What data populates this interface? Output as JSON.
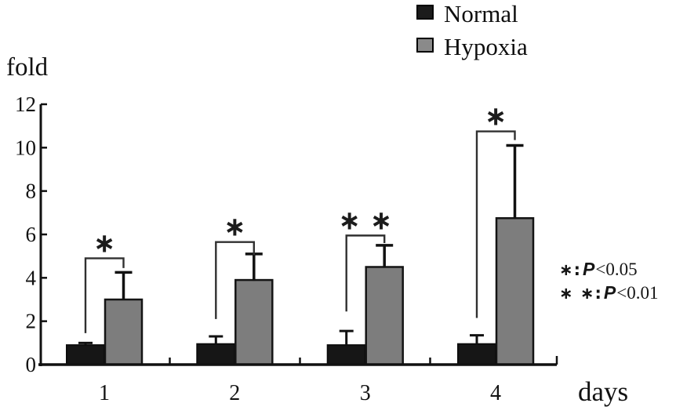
{
  "figure": {
    "background": "#ffffff"
  },
  "legend": {
    "items": [
      {
        "label": "Normal",
        "color": "#1b1b1b"
      },
      {
        "label": "Hypoxia",
        "color": "#8a8a8a"
      }
    ]
  },
  "annotations": {
    "notes": [
      {
        "prefix": "∗:",
        "p": "P",
        "suffix": "<0.05"
      },
      {
        "prefix": "∗ ∗:",
        "p": "P",
        "suffix": "<0.01"
      }
    ]
  },
  "chart_data": {
    "type": "bar",
    "title": "",
    "ylabel": "fold",
    "xlabel": "days",
    "categories": [
      "1",
      "2",
      "3",
      "4"
    ],
    "ylim": [
      0,
      12
    ],
    "yticks": [
      0,
      2,
      4,
      6,
      8,
      10,
      12
    ],
    "grid": false,
    "legend_position": "top-right",
    "series": [
      {
        "name": "Normal",
        "color": "#161616",
        "values": [
          0.9,
          0.95,
          0.9,
          0.95
        ],
        "errors_plus": [
          0.1,
          0.35,
          0.65,
          0.4
        ]
      },
      {
        "name": "Hypoxia",
        "color": "#7d7d7d",
        "values": [
          3.0,
          3.9,
          4.5,
          6.75
        ],
        "errors_plus": [
          1.25,
          1.2,
          1.0,
          3.35
        ]
      }
    ],
    "significance": [
      {
        "category": "1",
        "label": "∗",
        "bar_top": 4.9,
        "left_bottom": 1.45,
        "right_bottom": 4.45
      },
      {
        "category": "2",
        "label": "∗",
        "bar_top": 5.65,
        "left_bottom": 2.1,
        "right_bottom": 5.05
      },
      {
        "category": "3",
        "label": "∗ ∗",
        "bar_top": 5.95,
        "left_bottom": 2.45,
        "right_bottom": 5.6
      },
      {
        "category": "4",
        "label": "∗",
        "bar_top": 10.75,
        "left_bottom": 2.15,
        "right_bottom": 10.35
      }
    ],
    "notes": [
      "∗: P<0.05",
      "∗ ∗: P<0.01"
    ]
  }
}
